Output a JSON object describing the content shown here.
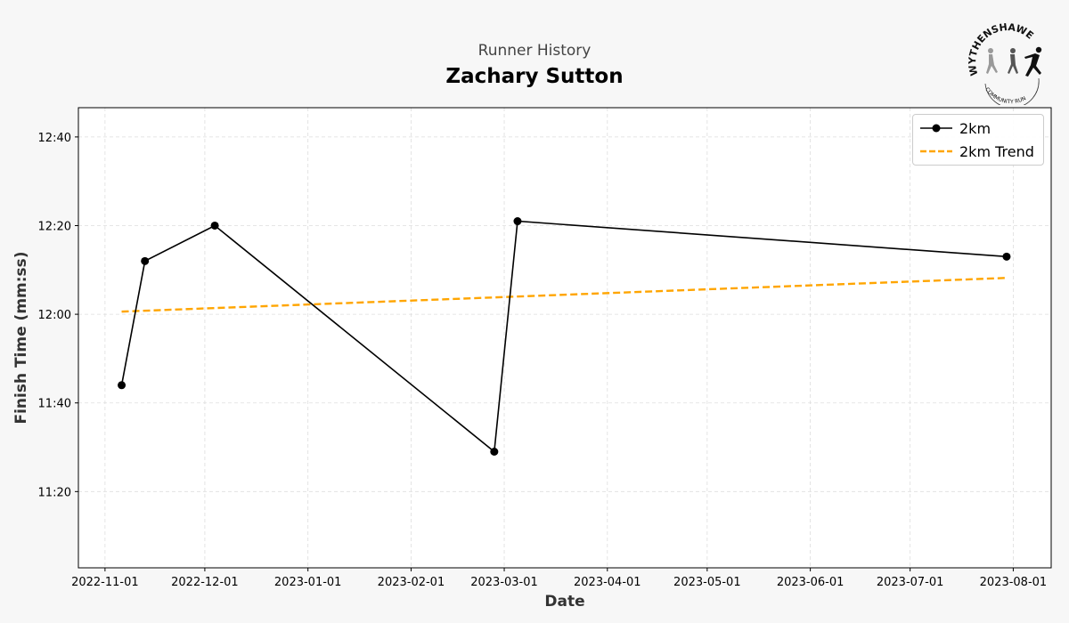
{
  "header": {
    "subtitle": "Runner History",
    "title": "Zachary Sutton",
    "logo_text": "WYTHENSHAWE COMMUNITY RUN"
  },
  "chart_data": {
    "type": "line",
    "xlabel": "Date",
    "ylabel": "Finish Time (mm:ss)",
    "x_ticks": [
      "2022-11-01",
      "2022-12-01",
      "2023-01-01",
      "2023-02-01",
      "2023-03-01",
      "2023-04-01",
      "2023-05-01",
      "2023-06-01",
      "2023-07-01",
      "2023-08-01"
    ],
    "y_ticks": [
      "11:20",
      "11:40",
      "12:00",
      "12:20",
      "12:40"
    ],
    "xlim": [
      "2022-10-24",
      "2023-08-12"
    ],
    "ylim": [
      "11:03",
      "12:47"
    ],
    "grid": true,
    "legend_position": "top-right",
    "series": [
      {
        "name": "2km",
        "color": "#000000",
        "style": "solid-markers",
        "x": [
          "2022-11-06",
          "2022-11-13",
          "2022-12-04",
          "2023-02-26",
          "2023-03-05",
          "2023-07-30"
        ],
        "y": [
          "11:44",
          "12:12",
          "12:20",
          "11:29",
          "12:21",
          "12:13"
        ]
      },
      {
        "name": "2km Trend",
        "color": "#FFA500",
        "style": "dashed",
        "x": [
          "2022-11-06",
          "2023-07-30"
        ],
        "y": [
          "12:00.6",
          "12:08.2"
        ]
      }
    ]
  }
}
